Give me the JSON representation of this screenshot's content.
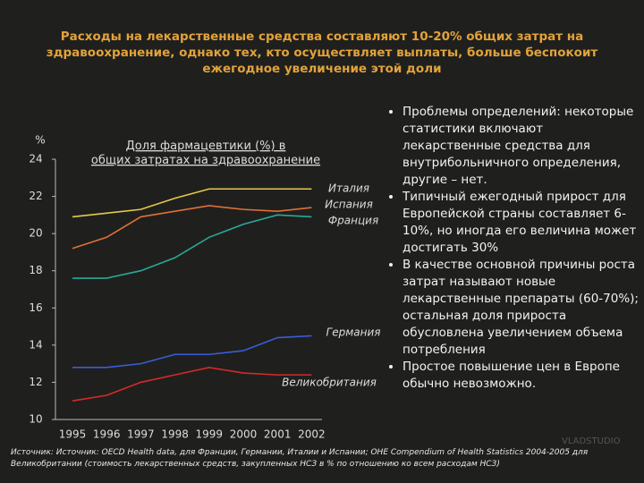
{
  "slide_title": "Расходы на лекарственные средства составляют 10-20% общих затрат на здравоохранение, однако тех, кто осуществляет выплаты, больше беспокоит ежегодное увеличение этой доли",
  "bullets": [
    "Проблемы определений: некоторые статистики включают лекарственные средства для внутрибольничного определения, другие – нет.",
    "Типичный ежегодный прирост для Европейской страны составляет 6-10%, но иногда его величина может достигать 30%",
    "В качестве основной причины роста затрат называют новые лекарственные препараты (60-70%); остальная доля прироста обусловлена увеличением объема потребления",
    "Простое повышение цен в Европе обычно невозможно."
  ],
  "source": "Источник: Источник: OECD Health data, для Франции, Германии, Италии и Испании; OHE Compendium of Health Statistics 2004-2005 для Великобритании (стоимость лекарственных средств, закупленных НСЗ в % по отношению ко всем расходам НСЗ)",
  "watermark": "VLADSTUDIO",
  "chart_data": {
    "type": "line",
    "title": "Доля фармацевтики (%) в общих затратах на здравоохранение",
    "y_label": "%",
    "categories": [
      "1995",
      "1996",
      "1997",
      "1998",
      "1999",
      "2000",
      "2001",
      "2002"
    ],
    "series": [
      {
        "name": "Италия",
        "color": "#e8c84a",
        "values": [
          20.9,
          21.1,
          21.3,
          21.9,
          22.4,
          22.4,
          22.4,
          22.4
        ]
      },
      {
        "name": "Испания",
        "color": "#e0703a",
        "values": [
          19.2,
          19.8,
          20.9,
          21.2,
          21.5,
          21.3,
          21.2,
          21.4
        ]
      },
      {
        "name": "Франция",
        "color": "#2aa89a",
        "values": [
          17.6,
          17.6,
          18.0,
          18.7,
          19.8,
          20.5,
          21.0,
          20.9
        ]
      },
      {
        "name": "Германия",
        "color": "#3a5cd8",
        "values": [
          12.8,
          12.8,
          13.0,
          13.5,
          13.5,
          13.7,
          14.4,
          14.5
        ]
      },
      {
        "name": "Великобритания",
        "color": "#d42a2a",
        "values": [
          11.0,
          11.3,
          12.0,
          12.4,
          12.8,
          12.5,
          12.4,
          12.4
        ]
      }
    ],
    "ylim": [
      10,
      24
    ],
    "yticks": [
      24,
      22,
      20,
      18,
      16,
      14,
      12,
      10
    ],
    "grid": false
  }
}
